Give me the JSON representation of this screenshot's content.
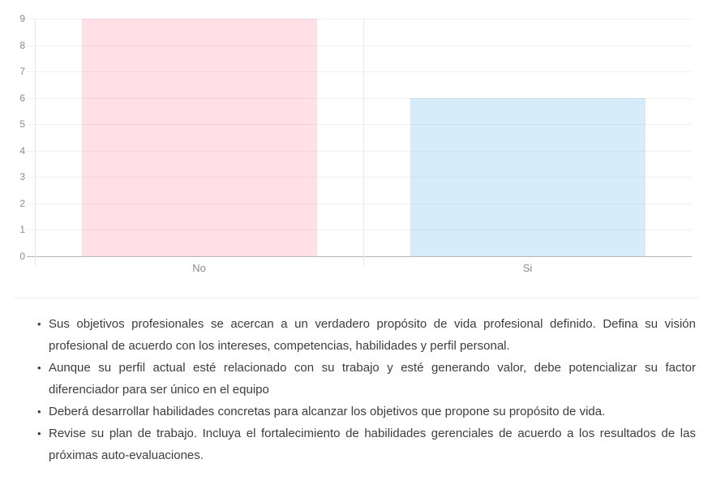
{
  "page": {
    "background": "#ffffff"
  },
  "chart_data": {
    "type": "bar",
    "categories": [
      "No",
      "Si"
    ],
    "values": [
      9,
      6
    ],
    "bar_colors": [
      "rgba(255,99,132,0.2)",
      "rgba(54,162,235,0.2)"
    ],
    "title": "",
    "xlabel": "",
    "ylabel": "",
    "ylim": [
      0,
      9
    ],
    "ytick_step": 1,
    "yticks": [
      0,
      1,
      2,
      3,
      4,
      5,
      6,
      7,
      8,
      9
    ],
    "grid": true,
    "legend_position": "none",
    "axis_colors": {
      "tick_label": "#8a8a8a",
      "gridline": "#f1f1f1",
      "zero_line": "#b7b7b7",
      "axis_line": "#e7e7e7"
    }
  },
  "divider": {
    "color": "#ececec"
  },
  "recommendations": {
    "bullet_char": "•",
    "items": [
      "Sus objetivos profesionales se acercan a un verdadero propósito de vida profesional definido. Defina su visión profesional de acuerdo con los intereses, competencias, habilidades y perfil personal.",
      "Aunque su perfil actual esté relacionado con su trabajo y esté generando valor, debe potencializar su factor diferenciador para ser único en el equipo",
      "Deberá desarrollar habilidades concretas para alcanzar los objetivos que propone su propósito de vida.",
      "Revise su plan de trabajo. Incluya el fortalecimiento de habilidades gerenciales de acuerdo a los resultados de las próximas auto-evaluaciones."
    ]
  }
}
